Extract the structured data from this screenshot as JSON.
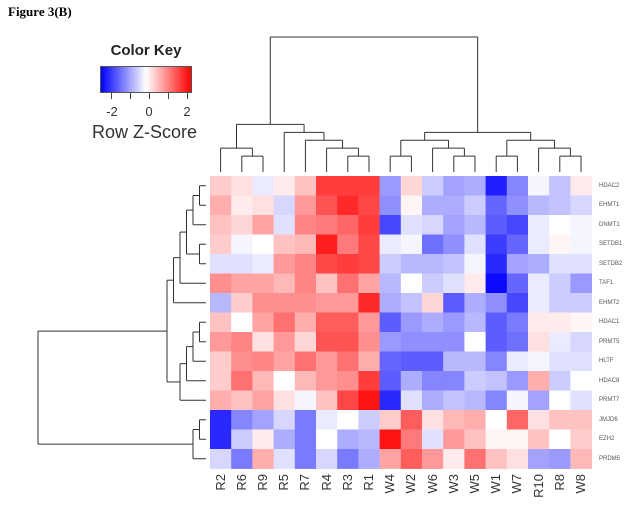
{
  "figure": {
    "title": "Figure 3(B)"
  },
  "color_key": {
    "title": "Color Key",
    "axis_label": "Row Z-Score",
    "tick_labels": [
      "-2",
      "0",
      "2"
    ],
    "low_color": "#0000ff",
    "mid_color": "#ffffff",
    "high_color": "#ff0000"
  },
  "chart_data": {
    "type": "heatmap",
    "title": "Figure 3(B)",
    "xlabel": "",
    "ylabel": "",
    "value_label": "Row Z-Score",
    "value_range": [
      -2.5,
      2.5
    ],
    "colormap": [
      "#0000ff",
      "#ffffff",
      "#ff0000"
    ],
    "columns": [
      "R2",
      "R6",
      "R9",
      "R5",
      "R7",
      "R4",
      "R3",
      "R1",
      "W4",
      "W2",
      "W6",
      "W3",
      "W5",
      "W1",
      "W7",
      "R10",
      "R8",
      "W8"
    ],
    "rows": [
      "HDAC2",
      "EHMT1",
      "DNMT1",
      "SETDB1",
      "SETDB2",
      "TAF1",
      "EHMT2",
      "HDAC1",
      "PRMT5",
      "HLTF",
      "HDAC8",
      "PRMT7",
      "JMJD6",
      "EZH2",
      "PRDM5"
    ],
    "values": [
      [
        0.5,
        0.3,
        -0.2,
        0.2,
        0.6,
        1.9,
        1.9,
        1.9,
        -1.0,
        0.4,
        -0.5,
        -0.9,
        -0.8,
        -2.2,
        -1.2,
        -0.1,
        -0.6,
        0.2
      ],
      [
        0.8,
        0.2,
        0.3,
        -0.4,
        1.0,
        1.7,
        2.1,
        1.8,
        -1.1,
        0.1,
        -0.8,
        -0.8,
        -0.5,
        -1.5,
        -1.1,
        -0.7,
        -0.6,
        -0.4
      ],
      [
        0.6,
        0.4,
        0.9,
        -0.3,
        1.2,
        1.3,
        1.5,
        1.9,
        -1.8,
        -0.3,
        -0.4,
        -0.9,
        -0.7,
        -1.6,
        -1.8,
        -0.2,
        0.0,
        -0.1
      ],
      [
        0.5,
        -0.1,
        0.0,
        0.6,
        0.7,
        2.2,
        1.3,
        1.8,
        -0.2,
        -0.1,
        -1.4,
        -1.1,
        -0.3,
        -1.9,
        -1.5,
        -0.2,
        0.1,
        -0.1
      ],
      [
        -0.3,
        -0.3,
        -0.2,
        1.0,
        1.2,
        1.8,
        1.9,
        1.8,
        -0.5,
        -0.7,
        -0.7,
        -0.6,
        -0.1,
        -2.1,
        -0.9,
        -0.8,
        -0.3,
        -0.3
      ],
      [
        1.1,
        0.9,
        0.9,
        0.7,
        1.2,
        0.6,
        1.4,
        0.9,
        -0.7,
        0.0,
        -0.5,
        -0.3,
        0.2,
        -2.4,
        -1.5,
        -0.2,
        -0.5,
        -1.0
      ],
      [
        -0.7,
        0.5,
        1.1,
        1.1,
        1.1,
        1.0,
        1.0,
        2.1,
        -0.8,
        -0.6,
        0.4,
        -1.6,
        -0.8,
        -1.1,
        -1.8,
        -0.2,
        -0.5,
        -0.5
      ],
      [
        0.6,
        0.0,
        0.9,
        1.4,
        0.8,
        1.6,
        1.6,
        1.0,
        -1.6,
        -1.0,
        -0.8,
        -1.0,
        -0.7,
        -1.6,
        -1.3,
        0.2,
        0.2,
        0.1
      ],
      [
        1.0,
        1.2,
        0.3,
        1.0,
        0.4,
        1.7,
        1.7,
        1.1,
        -1.0,
        -1.1,
        -1.1,
        -1.1,
        0.0,
        -1.6,
        -1.4,
        0.3,
        -0.2,
        -0.4
      ],
      [
        0.5,
        1.1,
        1.2,
        0.9,
        1.4,
        1.0,
        1.4,
        0.8,
        -1.5,
        -1.6,
        -1.6,
        -0.7,
        -0.7,
        -1.2,
        -0.2,
        -0.1,
        -0.3,
        -0.3
      ],
      [
        0.5,
        1.4,
        0.7,
        0.0,
        0.7,
        1.0,
        1.1,
        1.9,
        -1.6,
        -0.8,
        -1.2,
        -1.2,
        -0.5,
        -0.6,
        -1.0,
        0.8,
        -0.5,
        0.0
      ],
      [
        0.8,
        0.6,
        0.9,
        0.3,
        -0.1,
        0.6,
        1.8,
        2.3,
        -2.1,
        -0.3,
        -0.8,
        -0.6,
        -0.7,
        -1.2,
        -0.1,
        -0.9,
        0.0,
        -0.3
      ],
      [
        -2.1,
        -1.2,
        -0.9,
        -0.4,
        -1.3,
        -0.2,
        0.0,
        -0.5,
        0.5,
        1.6,
        0.3,
        0.7,
        0.8,
        0.0,
        1.5,
        0.3,
        0.6,
        0.6
      ],
      [
        -2.1,
        -0.5,
        0.2,
        -0.8,
        -1.3,
        0.0,
        -0.8,
        -0.7,
        2.3,
        1.3,
        -0.3,
        1.0,
        0.6,
        0.1,
        0.1,
        0.6,
        0.0,
        0.5
      ],
      [
        -0.4,
        -1.3,
        0.8,
        -0.3,
        -1.3,
        -0.4,
        -1.3,
        -0.8,
        0.9,
        1.6,
        1.0,
        0.2,
        1.4,
        0.6,
        0.3,
        -0.9,
        -1.0,
        0.7
      ]
    ],
    "col_dendrogram": "((R2,(R6,R9)),(R5,(R7,(R4,(R3,R1))))),(((W4,W2),(W6,(W3,W5))),((W1,W7),(R10,(R8,W8))))",
    "row_dendrogram": "((((((HDAC2,EHMT1),DNMT1),(SETDB1,SETDB2)),TAF1),EHMT2),((((HDAC1,PRMT5),HLTF),HDAC8),PRMT7)),((JMJD6,EZH2),PRDM5)",
    "legend_position": "top-left",
    "grid": false
  }
}
